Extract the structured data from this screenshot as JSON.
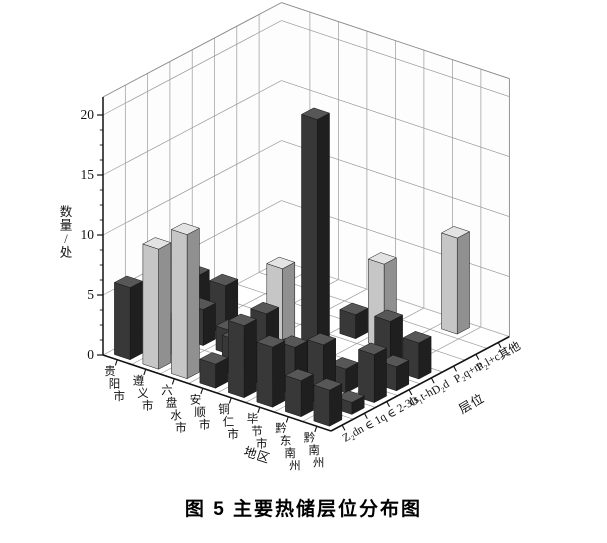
{
  "caption": "图 5  主要热储层位分布图",
  "chart_data": {
    "type": "bar",
    "variant": "3d-bar",
    "title": "图 5  主要热储层位分布图",
    "xlabel": "地区",
    "ylabel": "层位",
    "zlabel": "数量/处",
    "zlim": [
      0,
      20
    ],
    "zticks": [
      0,
      5,
      10,
      15,
      20
    ],
    "grid": true,
    "regions": [
      "贵阳市",
      "遵义市",
      "六盘水市",
      "安顺市",
      "铜仁市",
      "毕节市",
      "黔东南州",
      "黔南州"
    ],
    "horizons": [
      "Z₂dn",
      "∈ 1q",
      "∈ 2-3ls",
      "O₁t-h",
      "D₂d",
      "P₂q+m",
      "P₂l+c",
      "其他"
    ],
    "series": [
      {
        "name": "贵阳市",
        "values": [
          6,
          0,
          0,
          4,
          0,
          0,
          0,
          0
        ]
      },
      {
        "name": "遵义市",
        "values": [
          10,
          3,
          3,
          4,
          0,
          0,
          0,
          0
        ]
      },
      {
        "name": "六盘水市",
        "values": [
          12,
          0,
          2,
          0,
          0,
          0,
          0,
          0
        ]
      },
      {
        "name": "安顺市",
        "values": [
          2,
          3,
          0,
          7,
          0,
          0,
          0,
          0
        ]
      },
      {
        "name": "铜仁市",
        "values": [
          6,
          6,
          2,
          0,
          0,
          2,
          0,
          0
        ]
      },
      {
        "name": "毕节市",
        "values": [
          5,
          4,
          22,
          0,
          0,
          7,
          0,
          0
        ]
      },
      {
        "name": "黔东南州",
        "values": [
          3,
          5,
          2,
          0,
          4,
          0,
          0,
          8
        ]
      },
      {
        "name": "黔南州",
        "values": [
          3,
          1,
          4,
          2,
          3,
          0,
          0,
          0
        ]
      }
    ],
    "light_cells": [
      [
        1,
        0
      ],
      [
        2,
        0
      ],
      [
        3,
        3
      ],
      [
        5,
        5
      ],
      [
        6,
        7
      ]
    ],
    "colors": {
      "bar_dark_front": "#383838",
      "bar_dark_side": "#1f1f1f",
      "bar_dark_top": "#575757",
      "bar_light_front": "#c6c6c6",
      "bar_light_side": "#909090",
      "bar_light_top": "#e3e3e3",
      "grid": "#9a9a9a",
      "axis": "#111111",
      "background": "#ffffff"
    }
  }
}
